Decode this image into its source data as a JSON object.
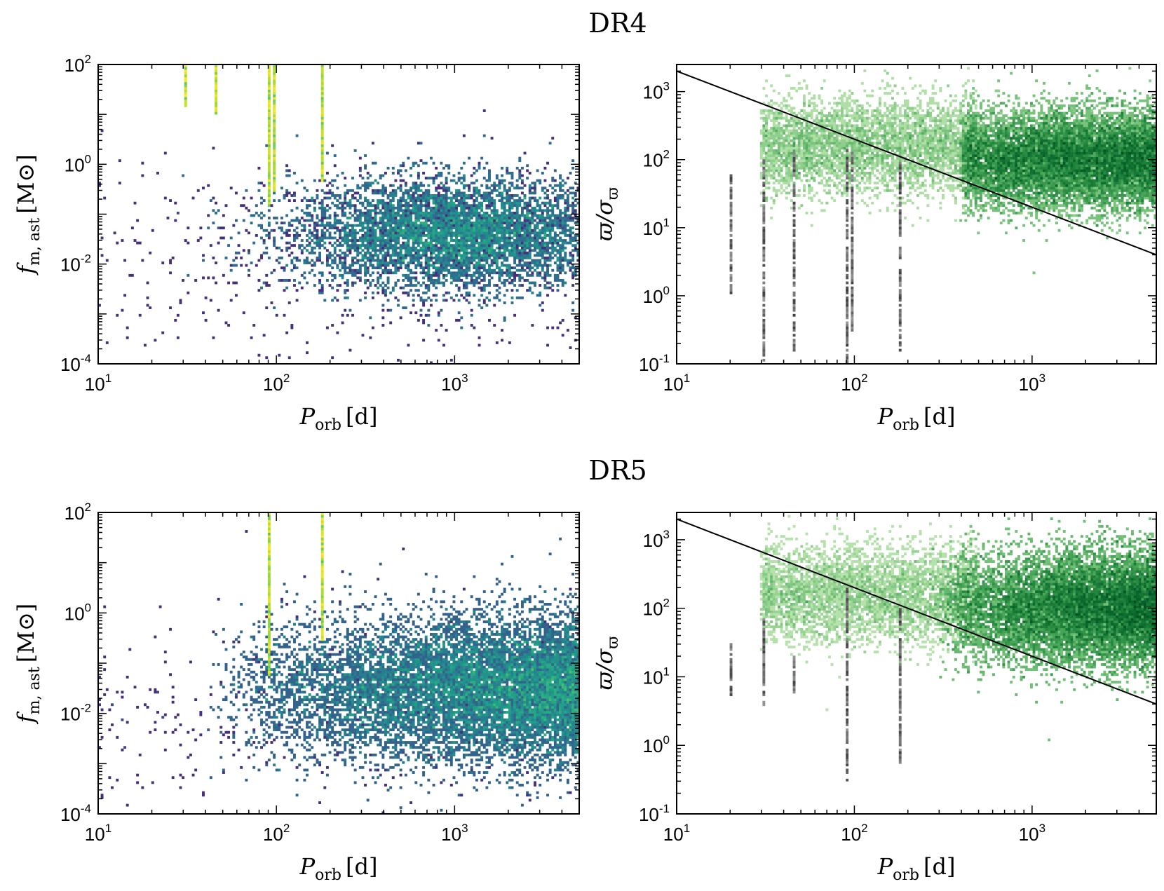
{
  "figure": {
    "rows": [
      {
        "title": "DR4"
      },
      {
        "title": "DR5"
      }
    ]
  },
  "chart_data": [
    {
      "panel_id": "dr4-left",
      "row": "DR4",
      "type": "heatmap",
      "colormap": "viridis",
      "x_scale": "log",
      "y_scale": "log",
      "xlim": [
        10,
        5000
      ],
      "ylim": [
        0.0001,
        100
      ],
      "xlabel": {
        "main": "P",
        "sub": "orb",
        "unit": "[d]"
      },
      "ylabel": {
        "main": "f",
        "sub": "m, ast",
        "unit": "[M⊙]"
      },
      "x_ticks": [
        {
          "base": "10",
          "exp": "1"
        },
        {
          "base": "10",
          "exp": "2"
        },
        {
          "base": "10",
          "exp": "3"
        }
      ],
      "y_ticks": [
        {
          "base": "10",
          "exp": "-4"
        },
        {
          "base": "10",
          "exp": "-2"
        },
        {
          "base": "10",
          "exp": "0"
        },
        {
          "base": "10",
          "exp": "2"
        }
      ],
      "main_cloud": {
        "x_range": [
          40,
          5000
        ],
        "y_center": 0.04,
        "y_spread_dex": 0.55,
        "peak_x": 1000
      },
      "vertical_streaks": [
        {
          "x": 31,
          "y_range": [
            15,
            100
          ]
        },
        {
          "x": 46,
          "y_range": [
            10,
            100
          ]
        },
        {
          "x": 92,
          "y_range": [
            0.15,
            100
          ]
        },
        {
          "x": 97,
          "y_range": [
            0.3,
            100
          ]
        },
        {
          "x": 180,
          "y_range": [
            0.5,
            100
          ]
        }
      ]
    },
    {
      "panel_id": "dr4-right",
      "row": "DR4",
      "type": "heatmap",
      "colormap": "greens",
      "x_scale": "log",
      "y_scale": "log",
      "xlim": [
        10,
        5000
      ],
      "ylim": [
        0.1,
        2500
      ],
      "xlabel": {
        "main": "P",
        "sub": "orb",
        "unit": "[d]"
      },
      "ylabel": {
        "main": "ϖ/σ",
        "sub": "ϖ",
        "unit": ""
      },
      "x_ticks": [
        {
          "base": "10",
          "exp": "1"
        },
        {
          "base": "10",
          "exp": "2"
        },
        {
          "base": "10",
          "exp": "3"
        }
      ],
      "y_ticks": [
        {
          "base": "10",
          "exp": "-1"
        },
        {
          "base": "10",
          "exp": "0"
        },
        {
          "base": "10",
          "exp": "1"
        },
        {
          "base": "10",
          "exp": "2"
        },
        {
          "base": "10",
          "exp": "3"
        }
      ],
      "line": {
        "x": [
          10,
          5000
        ],
        "y": [
          2000,
          4
        ]
      },
      "main_cloud": {
        "x_range": [
          400,
          5000
        ],
        "y_center": 100,
        "y_spread_dex": 0.35
      },
      "grey_streaks": [
        {
          "x": 20,
          "y_range": [
            1,
            60
          ]
        },
        {
          "x": 31,
          "y_range": [
            0.1,
            100
          ]
        },
        {
          "x": 46,
          "y_range": [
            0.15,
            130
          ]
        },
        {
          "x": 92,
          "y_range": [
            0.1,
            150
          ]
        },
        {
          "x": 97,
          "y_range": [
            0.3,
            120
          ]
        },
        {
          "x": 180,
          "y_range": [
            0.15,
            90
          ]
        }
      ]
    },
    {
      "panel_id": "dr5-left",
      "row": "DR5",
      "type": "heatmap",
      "colormap": "viridis",
      "x_scale": "log",
      "y_scale": "log",
      "xlim": [
        10,
        5000
      ],
      "ylim": [
        0.0001,
        100
      ],
      "xlabel": {
        "main": "P",
        "sub": "orb",
        "unit": "[d]"
      },
      "ylabel": {
        "main": "f",
        "sub": "m, ast",
        "unit": "[M⊙]"
      },
      "x_ticks": [
        {
          "base": "10",
          "exp": "1"
        },
        {
          "base": "10",
          "exp": "2"
        },
        {
          "base": "10",
          "exp": "3"
        }
      ],
      "y_ticks": [
        {
          "base": "10",
          "exp": "-4"
        },
        {
          "base": "10",
          "exp": "-2"
        },
        {
          "base": "10",
          "exp": "0"
        },
        {
          "base": "10",
          "exp": "2"
        }
      ],
      "main_cloud": {
        "x_range": [
          40,
          5000
        ],
        "y_center": 0.03,
        "y_spread_dex": 0.7,
        "peak_x": 4000
      },
      "vertical_streaks": [
        {
          "x": 92,
          "y_range": [
            0.06,
            100
          ]
        },
        {
          "x": 180,
          "y_range": [
            0.3,
            100
          ]
        }
      ]
    },
    {
      "panel_id": "dr5-right",
      "row": "DR5",
      "type": "heatmap",
      "colormap": "greens",
      "x_scale": "log",
      "y_scale": "log",
      "xlim": [
        10,
        5000
      ],
      "ylim": [
        0.1,
        2500
      ],
      "xlabel": {
        "main": "P",
        "sub": "orb",
        "unit": "[d]"
      },
      "ylabel": {
        "main": "ϖ/σ",
        "sub": "ϖ",
        "unit": ""
      },
      "x_ticks": [
        {
          "base": "10",
          "exp": "1"
        },
        {
          "base": "10",
          "exp": "2"
        },
        {
          "base": "10",
          "exp": "3"
        }
      ],
      "y_ticks": [
        {
          "base": "10",
          "exp": "-1"
        },
        {
          "base": "10",
          "exp": "0"
        },
        {
          "base": "10",
          "exp": "1"
        },
        {
          "base": "10",
          "exp": "2"
        },
        {
          "base": "10",
          "exp": "3"
        }
      ],
      "line": {
        "x": [
          10,
          5000
        ],
        "y": [
          2000,
          4
        ]
      },
      "main_cloud": {
        "x_range": [
          300,
          5000
        ],
        "y_center": 100,
        "y_spread_dex": 0.4
      },
      "grey_streaks": [
        {
          "x": 20,
          "y_range": [
            5,
            30
          ]
        },
        {
          "x": 31,
          "y_range": [
            4,
            70
          ]
        },
        {
          "x": 46,
          "y_range": [
            6,
            20
          ]
        },
        {
          "x": 92,
          "y_range": [
            0.3,
            200
          ]
        },
        {
          "x": 180,
          "y_range": [
            0.5,
            100
          ]
        }
      ]
    }
  ]
}
